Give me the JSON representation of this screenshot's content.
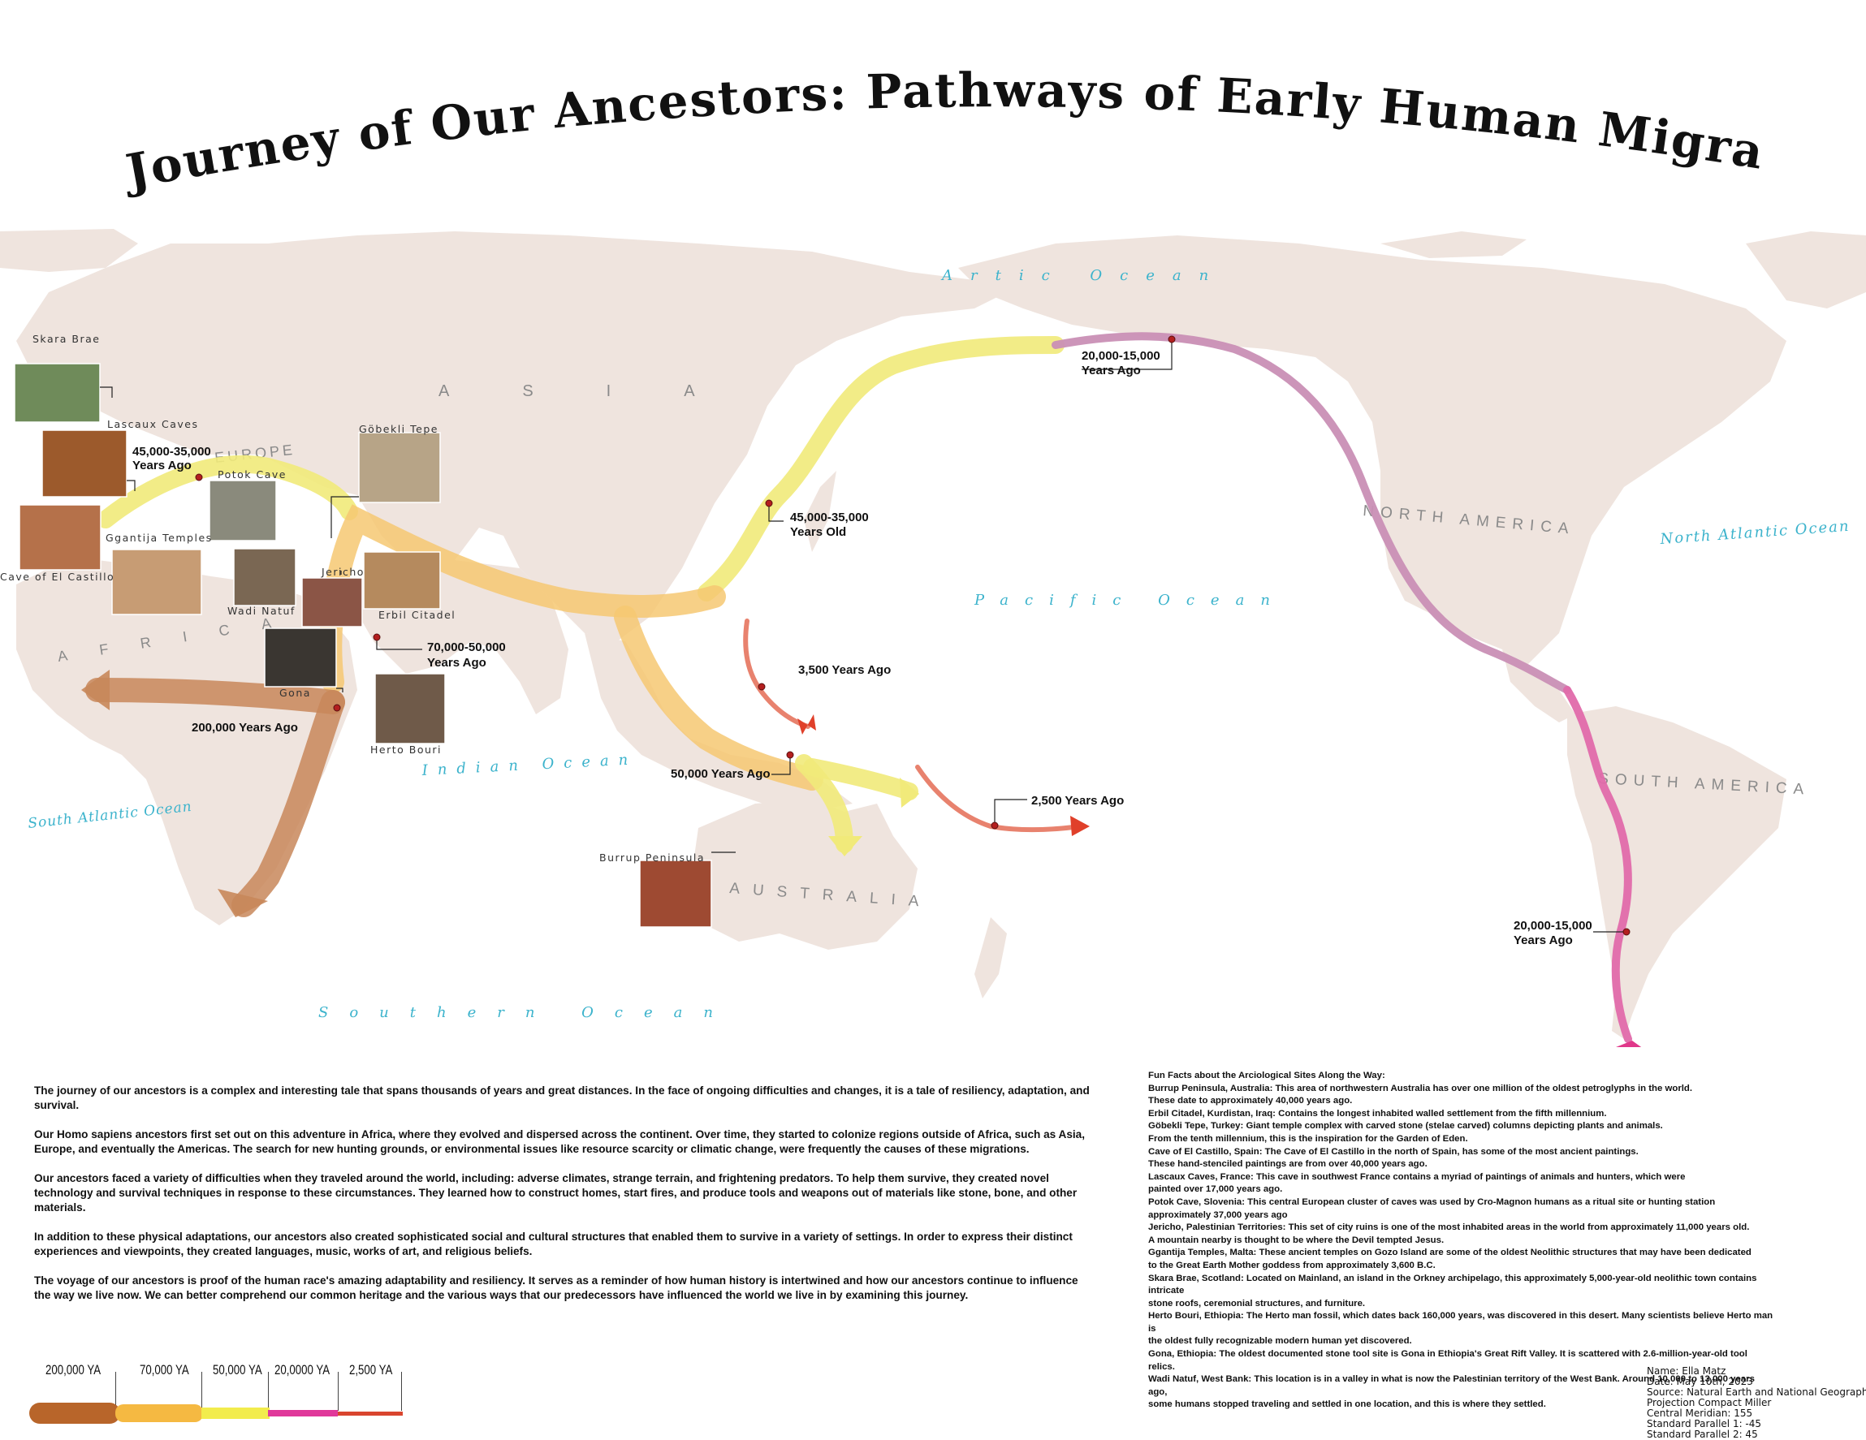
{
  "title": "Journey of Our Ancestors: Pathways of Early Human Migration",
  "oceans": [
    "Artic Ocean",
    "Pacific Ocean",
    "North Atlantic Ocean",
    "South Atlantic Ocean",
    "Indian Ocean",
    "Southern Ocean"
  ],
  "continents": [
    "ASIA",
    "EUROPE",
    "AFRICA",
    "NORTH AMERICA",
    "SOUTH AMERICA",
    "AUSTRALIA"
  ],
  "sites": [
    "Skara Brae",
    "Lascaux Caves",
    "Potok Cave",
    "Göbekli Tepe",
    "Ggantija Temples",
    "Cave of El Castillo",
    "Wadi Natuf",
    "Jericho",
    "Erbil Citadel",
    "Gona",
    "Herto Bouri",
    "Burrup Peninsula"
  ],
  "dates": {
    "africa_origin": "200,000 Years Ago",
    "out_of_africa_1": "70,000-50,000",
    "out_of_africa_2": "Years Ago",
    "europe_1": "45,000-35,000",
    "europe_2": "Years Ago",
    "east_asia_1": "45,000-35,000",
    "east_asia_2": "Years Old",
    "indonesia": "50,000 Years Ago",
    "pacific_1": "3,500 Years Ago",
    "pacific_2": "2,500 Years Ago",
    "beringia_1": "20,000-15,000",
    "beringia_2": "Years Ago",
    "south_america_1": "20,000-15,000",
    "south_america_2": "Years Ago"
  },
  "intro": [
    "The journey of our ancestors is a complex and interesting tale that spans thousands of years and great distances. In the face of ongoing difficulties and changes, it is a tale of resiliency, adaptation, and survival.",
    "Our Homo sapiens ancestors first set out on this adventure in Africa, where they evolved and dispersed across the continent. Over time, they started to colonize regions outside of Africa, such as Asia, Europe, and eventually the Americas. The search for new hunting grounds, or environmental issues like resource scarcity or climatic change, were frequently the causes of these migrations.",
    "Our ancestors faced a variety of difficulties when they traveled around the world, including: adverse climates, strange terrain, and frightening predators. To help them survive, they created novel technology and survival techniques in response to these circumstances. They learned how to construct homes, start fires, and produce tools and weapons out of materials like stone, bone, and other materials.",
    "In addition to these physical adaptations, our ancestors also created sophisticated social and cultural structures that enabled them to survive in a variety of settings. In order to express their distinct experiences and viewpoints, they created languages, music, works of art, and religious beliefs.",
    "The voyage of our ancestors is proof of the human race's amazing adaptability and resiliency. It serves as a reminder of how human history is intertwined and how our ancestors continue to influence the way we live now. We can better comprehend our common heritage and the various ways that our predecessors have influenced the world we live in by examining this journey."
  ],
  "facts_title": "Fun Facts about the Arciological Sites Along the Way:",
  "facts": [
    "Burrup Peninsula, Australia: This area of northwestern Australia has over one million of the oldest petroglyphs in the world.\nThese date to approximately 40,000 years ago.",
    "Erbil Citadel, Kurdistan, Iraq: Contains the longest inhabited walled settlement from the fifth millennium.",
    "Göbekli Tepe, Turkey: Giant temple complex with carved stone (stelae carved) columns depicting plants and animals.\nFrom the tenth millennium, this is the inspiration for the Garden of Eden.",
    "Cave of El Castillo, Spain: The Cave of El Castillo in the north of Spain, has some of the most ancient paintings.\nThese hand-stenciled paintings are from over 40,000 years ago.",
    "Lascaux Caves, France: This cave in southwest France contains a myriad of paintings of animals and hunters, which were\npainted over 17,000 years ago.",
    "Potok Cave, Slovenia: This central European cluster of caves was used by Cro-Magnon humans as a ritual site or hunting station\napproximately 37,000 years ago",
    "Jericho, Palestinian Territories: This set of city ruins is one of the most inhabited areas in the world from approximately 11,000 years old.\nA mountain nearby is thought to be where the Devil tempted Jesus.",
    "Ggantija Temples, Malta: These ancient temples on Gozo Island are some of the oldest Neolithic structures that may have been dedicated\nto the Great Earth Mother goddess from approximately 3,600 B.C.",
    "Skara Brae, Scotland: Located on Mainland, an island in the Orkney archipelago, this approximately 5,000-year-old neolithic town contains intricate\nstone roofs, ceremonial structures, and furniture.",
    "Herto Bouri, Ethiopia: The Herto man fossil, which dates back 160,000 years, was discovered in this desert. Many scientists believe Herto man is\nthe oldest fully recognizable modern human yet discovered.",
    "Gona, Ethiopia: The oldest documented stone tool site is Gona in Ethiopia's Great Rift Valley. It is scattered with 2.6-million-year-old tool relics.",
    "Wadi Natuf, West Bank: This location is in a valley in what is now the Palestinian territory of the West Bank. Around 10,000 to 13,000 years ago,\nsome humans stopped traveling and settled in one location, and this is where they settled."
  ],
  "credits": [
    "Name: Ella Matz",
    "Date: May 10th, 2023",
    "Source: Natural Earth and National Geographic",
    "Projection Compact Miller",
    "Central Meridian: 155",
    "Standard Parallel 1: -45",
    "Standard Parallel 2: 45"
  ],
  "legend": [
    {
      "label": "200,000 YA",
      "color": "#b8652a"
    },
    {
      "label": "70,000 YA",
      "color": "#f5b942"
    },
    {
      "label": "50,000 YA",
      "color": "#f2ec4c"
    },
    {
      "label": "20,0000 YA",
      "color": "#e0389a"
    },
    {
      "label": "2,500 YA",
      "color": "#d9452e"
    }
  ],
  "colors": {
    "land": "#efe4de",
    "ocean_text": "#3cb3cc",
    "route_africa": "#c8875a",
    "route_asia": "#f6c872",
    "route_yellow": "#f1ea7a",
    "route_america_purple": "#c98fb5",
    "route_america_pink": "#e06aaa",
    "route_pacific": "#e8826e",
    "arrowhead_red": "#e0402a",
    "arrowhead_pink": "#e0388a"
  }
}
